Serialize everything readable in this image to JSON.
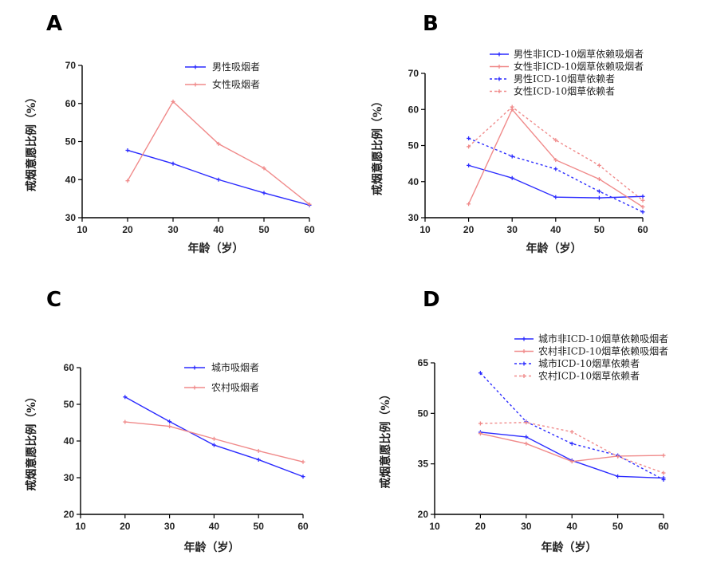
{
  "chart_data": [
    {
      "panel": "A",
      "type": "line",
      "xlabel": "年龄（岁）",
      "ylabel": "戒烟意愿比例（%）",
      "xlim": [
        10,
        60
      ],
      "ylim": [
        30,
        70
      ],
      "xticks": [
        10,
        20,
        30,
        40,
        50,
        60
      ],
      "yticks": [
        30,
        40,
        50,
        60,
        70
      ],
      "legend_position": "top-center",
      "series": [
        {
          "name": "男性吸烟者",
          "color": "#2b2bff",
          "dash": false,
          "x": [
            20,
            30,
            40,
            50,
            60
          ],
          "y": [
            47.7,
            44.2,
            40.0,
            36.5,
            33.3
          ]
        },
        {
          "name": "女性吸烟者",
          "color": "#f08a8a",
          "dash": false,
          "x": [
            20,
            30,
            40,
            50,
            60
          ],
          "y": [
            39.7,
            60.5,
            49.4,
            43.0,
            33.5
          ]
        }
      ]
    },
    {
      "panel": "B",
      "type": "line",
      "xlabel": "年龄（岁）",
      "ylabel": "戒烟意愿比例（%）",
      "xlim": [
        10,
        60
      ],
      "ylim": [
        30,
        70
      ],
      "xticks": [
        10,
        20,
        30,
        40,
        50,
        60
      ],
      "yticks": [
        30,
        40,
        50,
        60,
        70
      ],
      "legend_position": "top-right",
      "series": [
        {
          "name": "男性非ICD-10烟草依赖吸烟者",
          "color": "#2b2bff",
          "dash": false,
          "x": [
            20,
            30,
            40,
            50,
            60
          ],
          "y": [
            44.5,
            41.0,
            35.7,
            35.5,
            35.9
          ]
        },
        {
          "name": "女性非ICD-10烟草依赖吸烟者",
          "color": "#f08a8a",
          "dash": false,
          "x": [
            20,
            30,
            40,
            50,
            60
          ],
          "y": [
            33.8,
            60.0,
            46.0,
            40.7,
            33.0
          ]
        },
        {
          "name": "男性ICD-10烟草依赖者",
          "color": "#2b2bff",
          "dash": true,
          "x": [
            20,
            30,
            40,
            50,
            60
          ],
          "y": [
            52.0,
            47.0,
            43.5,
            37.3,
            31.6
          ]
        },
        {
          "name": "女性ICD-10烟草依赖者",
          "color": "#f08a8a",
          "dash": true,
          "x": [
            20,
            30,
            40,
            50,
            60
          ],
          "y": [
            49.7,
            60.7,
            51.5,
            44.5,
            34.8
          ]
        }
      ]
    },
    {
      "panel": "C",
      "type": "line",
      "xlabel": "年龄（岁）",
      "ylabel": "戒烟意愿比例（%）",
      "xlim": [
        10,
        60
      ],
      "ylim": [
        20,
        60
      ],
      "xticks": [
        10,
        20,
        30,
        40,
        50,
        60
      ],
      "yticks": [
        20,
        30,
        40,
        50,
        60
      ],
      "legend_position": "top-center",
      "series": [
        {
          "name": "城市吸烟者",
          "color": "#2b2bff",
          "dash": false,
          "x": [
            20,
            30,
            40,
            50,
            60
          ],
          "y": [
            52.0,
            45.3,
            38.9,
            34.9,
            30.3
          ]
        },
        {
          "name": "农村吸烟者",
          "color": "#f08a8a",
          "dash": false,
          "x": [
            20,
            30,
            40,
            50,
            60
          ],
          "y": [
            45.2,
            44.0,
            40.6,
            37.3,
            34.3
          ]
        }
      ]
    },
    {
      "panel": "D",
      "type": "line",
      "xlabel": "年龄（岁）",
      "ylabel": "戒烟意愿比例（%）",
      "xlim": [
        10,
        60
      ],
      "ylim": [
        20,
        65
      ],
      "xticks": [
        10,
        20,
        30,
        40,
        50,
        60
      ],
      "yticks": [
        20,
        35,
        50,
        65
      ],
      "legend_position": "top-right",
      "series": [
        {
          "name": "城市非ICD-10烟草依赖吸烟者",
          "color": "#2b2bff",
          "dash": false,
          "x": [
            20,
            30,
            40,
            50,
            60
          ],
          "y": [
            44.4,
            43.0,
            36.0,
            31.3,
            30.8
          ]
        },
        {
          "name": "农村非ICD-10烟草依赖吸烟者",
          "color": "#f08a8a",
          "dash": false,
          "x": [
            20,
            30,
            40,
            50,
            60
          ],
          "y": [
            44.0,
            41.0,
            35.7,
            37.3,
            37.5
          ]
        },
        {
          "name": "城市ICD-10烟草依赖者",
          "color": "#2b2bff",
          "dash": true,
          "x": [
            20,
            30,
            40,
            50,
            60
          ],
          "y": [
            62.0,
            47.5,
            41.0,
            37.5,
            30.3
          ]
        },
        {
          "name": "农村ICD-10烟草依赖者",
          "color": "#f08a8a",
          "dash": true,
          "x": [
            20,
            30,
            40,
            50,
            60
          ],
          "y": [
            47.0,
            47.3,
            44.5,
            37.2,
            32.3
          ]
        }
      ]
    }
  ]
}
